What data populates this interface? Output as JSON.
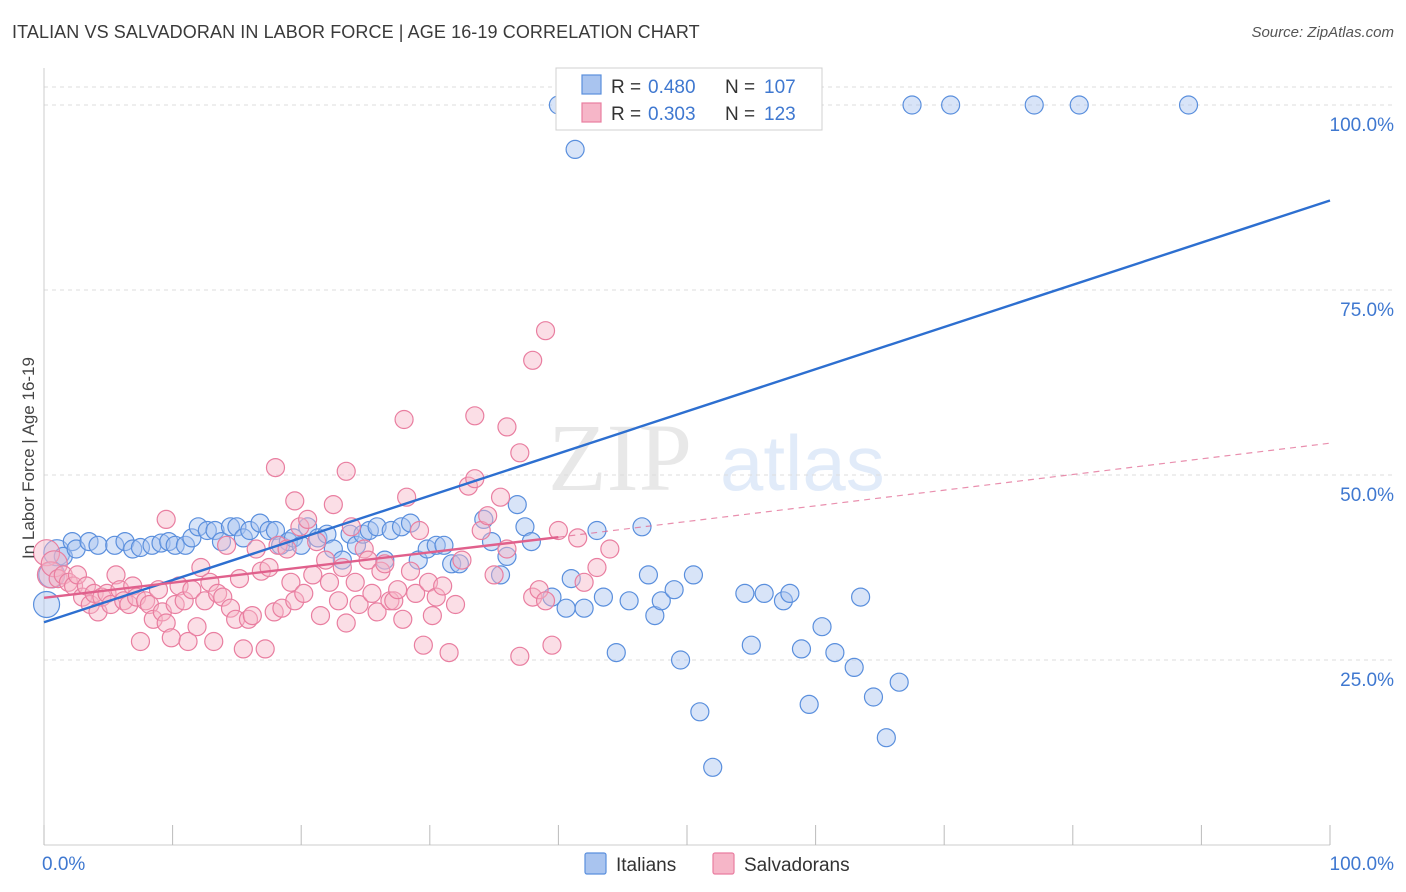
{
  "title": "ITALIAN VS SALVADORAN IN LABOR FORCE | AGE 16-19 CORRELATION CHART",
  "source": "Source: ZipAtlas.com",
  "watermark": {
    "zip": "ZIP",
    "atlas": "atlas"
  },
  "colors": {
    "blue_fill": "#a9c4ef",
    "blue_stroke": "#5a8fdd",
    "blue_line": "#2d6fd0",
    "pink_fill": "#f6b6c8",
    "pink_stroke": "#e97ea0",
    "pink_line": "#e0608c",
    "axis_text": "#3f78d0",
    "grid": "#dddddd"
  },
  "stats_legend": [
    {
      "r_label": "R =",
      "r_value": "0.480",
      "n_label": "N =",
      "n_value": "107"
    },
    {
      "r_label": "R =",
      "r_value": "0.303",
      "n_label": "N =",
      "n_value": "123"
    }
  ],
  "chart_data": {
    "type": "scatter",
    "title": "ITALIAN VS SALVADORAN IN LABOR FORCE | AGE 16-19 CORRELATION CHART",
    "xlabel": "",
    "ylabel": "In Labor Force | Age 16-19",
    "xlim": [
      0,
      100
    ],
    "ylim": [
      0,
      105
    ],
    "x_tick_labels": [
      "0.0%",
      "100.0%"
    ],
    "y_ticks": [
      25,
      50,
      75,
      100
    ],
    "y_tick_labels": [
      "25.0%",
      "50.0%",
      "75.0%",
      "100.0%"
    ],
    "grid": true,
    "legend_position": "bottom-center",
    "series": [
      {
        "name": "Italians",
        "color": "#5a8fdd",
        "trend": {
          "x": [
            0,
            100
          ],
          "y": [
            30.1,
            87.1
          ],
          "style": "solid"
        },
        "points": [
          [
            0.2,
            32.5
          ],
          [
            0.6,
            36.5
          ],
          [
            1.0,
            39.5
          ],
          [
            1.5,
            39.0
          ],
          [
            2.2,
            41.0
          ],
          [
            2.5,
            40.0
          ],
          [
            3.5,
            41.0
          ],
          [
            4.2,
            40.5
          ],
          [
            5.5,
            40.5
          ],
          [
            6.3,
            41.0
          ],
          [
            6.9,
            40.0
          ],
          [
            7.5,
            40.2
          ],
          [
            8.4,
            40.5
          ],
          [
            9.1,
            40.8
          ],
          [
            9.7,
            41.0
          ],
          [
            10.2,
            40.5
          ],
          [
            11.0,
            40.5
          ],
          [
            11.5,
            41.5
          ],
          [
            12.0,
            43.0
          ],
          [
            12.7,
            42.5
          ],
          [
            13.3,
            42.5
          ],
          [
            13.8,
            41.0
          ],
          [
            14.5,
            43.0
          ],
          [
            15.0,
            43.0
          ],
          [
            15.5,
            41.5
          ],
          [
            16.0,
            42.5
          ],
          [
            16.8,
            43.5
          ],
          [
            17.5,
            42.5
          ],
          [
            18.0,
            42.5
          ],
          [
            18.4,
            40.5
          ],
          [
            19.0,
            41.0
          ],
          [
            19.4,
            41.5
          ],
          [
            20.0,
            40.5
          ],
          [
            20.5,
            43.0
          ],
          [
            21.3,
            41.5
          ],
          [
            22.0,
            42.0
          ],
          [
            22.5,
            40.0
          ],
          [
            23.2,
            38.5
          ],
          [
            23.8,
            42.0
          ],
          [
            24.3,
            40.5
          ],
          [
            24.8,
            42.0
          ],
          [
            25.3,
            42.5
          ],
          [
            25.9,
            43.0
          ],
          [
            26.5,
            38.5
          ],
          [
            27.0,
            42.5
          ],
          [
            27.8,
            43.0
          ],
          [
            28.5,
            43.5
          ],
          [
            29.1,
            38.5
          ],
          [
            29.8,
            40.0
          ],
          [
            30.5,
            40.5
          ],
          [
            31.1,
            40.5
          ],
          [
            31.7,
            38.0
          ],
          [
            32.3,
            38.0
          ],
          [
            34.2,
            44.0
          ],
          [
            34.8,
            41.0
          ],
          [
            35.5,
            36.5
          ],
          [
            36.0,
            39.0
          ],
          [
            36.8,
            46.0
          ],
          [
            37.4,
            43.0
          ],
          [
            37.9,
            41.0
          ],
          [
            39.5,
            33.5
          ],
          [
            40.6,
            32.0
          ],
          [
            41.0,
            36.0
          ],
          [
            42.0,
            32.0
          ],
          [
            43.0,
            42.5
          ],
          [
            43.5,
            33.5
          ],
          [
            44.5,
            26.0
          ],
          [
            45.5,
            33.0
          ],
          [
            46.5,
            43.0
          ],
          [
            47.0,
            36.5
          ],
          [
            47.5,
            31.0
          ],
          [
            48.0,
            33.0
          ],
          [
            49.0,
            34.5
          ],
          [
            49.5,
            25.0
          ],
          [
            50.5,
            36.5
          ],
          [
            51.0,
            18.0
          ],
          [
            52.0,
            10.5
          ],
          [
            54.5,
            34.0
          ],
          [
            55.0,
            27.0
          ],
          [
            56.0,
            34.0
          ],
          [
            57.5,
            33.0
          ],
          [
            58.0,
            34.0
          ],
          [
            58.9,
            26.5
          ],
          [
            59.5,
            19.0
          ],
          [
            60.5,
            29.5
          ],
          [
            61.5,
            26.0
          ],
          [
            63.0,
            24.0
          ],
          [
            63.5,
            33.5
          ],
          [
            64.5,
            20.0
          ],
          [
            65.5,
            14.5
          ],
          [
            66.5,
            22.0
          ],
          [
            41.3,
            94.0
          ],
          [
            41.8,
            100.0
          ],
          [
            42.8,
            100.0
          ],
          [
            44.0,
            100.0
          ],
          [
            45.3,
            100.0
          ],
          [
            48.0,
            100.0
          ],
          [
            49.5,
            100.0
          ],
          [
            50.5,
            100.0
          ],
          [
            55.0,
            100.0
          ],
          [
            56.5,
            100.0
          ],
          [
            67.5,
            100.0
          ],
          [
            70.5,
            100.0
          ],
          [
            77.0,
            100.0
          ],
          [
            80.5,
            100.0
          ],
          [
            89.0,
            100.0
          ],
          [
            40.0,
            100.0
          ],
          [
            46.0,
            100.0
          ]
        ]
      },
      {
        "name": "Salvadorans",
        "color": "#e97ea0",
        "trend": {
          "x": [
            0,
            40
          ],
          "y": [
            33.4,
            41.6
          ],
          "style": "solid"
        },
        "trend_extension": {
          "x": [
            40,
            100
          ],
          "y": [
            41.6,
            54.3
          ],
          "style": "dashed"
        },
        "points": [
          [
            0.2,
            39.5
          ],
          [
            0.5,
            36.5
          ],
          [
            0.8,
            38.0
          ],
          [
            1.1,
            36.0
          ],
          [
            1.5,
            36.5
          ],
          [
            1.9,
            35.5
          ],
          [
            2.3,
            35.0
          ],
          [
            2.6,
            36.5
          ],
          [
            3.0,
            33.5
          ],
          [
            3.3,
            35.0
          ],
          [
            3.6,
            32.5
          ],
          [
            3.9,
            34.0
          ],
          [
            4.2,
            31.5
          ],
          [
            4.5,
            33.5
          ],
          [
            4.9,
            34.0
          ],
          [
            5.2,
            32.5
          ],
          [
            5.6,
            36.5
          ],
          [
            5.9,
            34.5
          ],
          [
            6.2,
            33.0
          ],
          [
            6.6,
            32.5
          ],
          [
            6.9,
            35.0
          ],
          [
            7.2,
            33.5
          ],
          [
            7.5,
            27.5
          ],
          [
            7.9,
            33.0
          ],
          [
            8.2,
            32.5
          ],
          [
            8.5,
            30.5
          ],
          [
            8.9,
            34.5
          ],
          [
            9.2,
            31.5
          ],
          [
            9.5,
            30.0
          ],
          [
            9.9,
            28.0
          ],
          [
            10.2,
            32.5
          ],
          [
            10.5,
            35.0
          ],
          [
            10.9,
            33.0
          ],
          [
            11.2,
            27.5
          ],
          [
            11.5,
            34.5
          ],
          [
            11.9,
            29.5
          ],
          [
            12.2,
            37.5
          ],
          [
            12.5,
            33.0
          ],
          [
            12.9,
            35.5
          ],
          [
            13.2,
            27.5
          ],
          [
            13.5,
            34.0
          ],
          [
            13.9,
            33.5
          ],
          [
            14.2,
            40.5
          ],
          [
            14.5,
            32.0
          ],
          [
            14.9,
            30.5
          ],
          [
            15.2,
            36.0
          ],
          [
            15.5,
            26.5
          ],
          [
            15.9,
            30.5
          ],
          [
            16.2,
            31.0
          ],
          [
            16.5,
            40.0
          ],
          [
            16.9,
            37.0
          ],
          [
            17.2,
            26.5
          ],
          [
            17.5,
            37.5
          ],
          [
            17.9,
            31.5
          ],
          [
            18.2,
            40.5
          ],
          [
            18.5,
            32.0
          ],
          [
            18.9,
            40.0
          ],
          [
            19.2,
            35.5
          ],
          [
            19.5,
            33.0
          ],
          [
            19.9,
            43.0
          ],
          [
            20.2,
            34.0
          ],
          [
            20.5,
            44.0
          ],
          [
            20.9,
            36.5
          ],
          [
            21.2,
            41.0
          ],
          [
            21.5,
            31.0
          ],
          [
            21.9,
            38.5
          ],
          [
            22.2,
            35.5
          ],
          [
            22.5,
            46.0
          ],
          [
            22.9,
            33.0
          ],
          [
            23.2,
            37.5
          ],
          [
            23.5,
            30.0
          ],
          [
            23.9,
            43.0
          ],
          [
            24.2,
            35.5
          ],
          [
            24.5,
            32.5
          ],
          [
            24.9,
            40.0
          ],
          [
            25.2,
            38.5
          ],
          [
            25.5,
            34.0
          ],
          [
            25.9,
            31.5
          ],
          [
            26.2,
            37.0
          ],
          [
            26.5,
            38.0
          ],
          [
            26.9,
            33.0
          ],
          [
            27.2,
            33.0
          ],
          [
            27.5,
            34.5
          ],
          [
            27.9,
            30.5
          ],
          [
            28.2,
            47.0
          ],
          [
            28.5,
            37.0
          ],
          [
            28.9,
            34.0
          ],
          [
            29.2,
            42.5
          ],
          [
            29.5,
            27.0
          ],
          [
            29.9,
            35.5
          ],
          [
            30.2,
            31.0
          ],
          [
            30.5,
            33.5
          ],
          [
            31.0,
            35.0
          ],
          [
            31.5,
            26.0
          ],
          [
            32.0,
            32.5
          ],
          [
            32.5,
            38.5
          ],
          [
            33.0,
            48.5
          ],
          [
            33.5,
            49.5
          ],
          [
            34.0,
            42.5
          ],
          [
            34.5,
            44.5
          ],
          [
            35.0,
            36.5
          ],
          [
            35.5,
            47.0
          ],
          [
            36.0,
            40.0
          ],
          [
            37.0,
            25.5
          ],
          [
            38.0,
            33.5
          ],
          [
            38.5,
            34.5
          ],
          [
            39.0,
            33.0
          ],
          [
            39.5,
            27.0
          ],
          [
            40.0,
            42.5
          ],
          [
            41.5,
            41.5
          ],
          [
            42.0,
            35.5
          ],
          [
            43.0,
            37.5
          ],
          [
            44.0,
            40.0
          ],
          [
            37.0,
            53.0
          ],
          [
            36.0,
            56.5
          ],
          [
            33.5,
            58.0
          ],
          [
            28.0,
            57.5
          ],
          [
            38.0,
            65.5
          ],
          [
            39.0,
            69.5
          ],
          [
            18.0,
            51.0
          ],
          [
            23.5,
            50.5
          ],
          [
            19.5,
            46.5
          ],
          [
            9.5,
            44.0
          ]
        ]
      }
    ]
  },
  "bottom_legend": [
    {
      "label": "Italians",
      "swatch": "blue"
    },
    {
      "label": "Salvadorans",
      "swatch": "pink"
    }
  ]
}
